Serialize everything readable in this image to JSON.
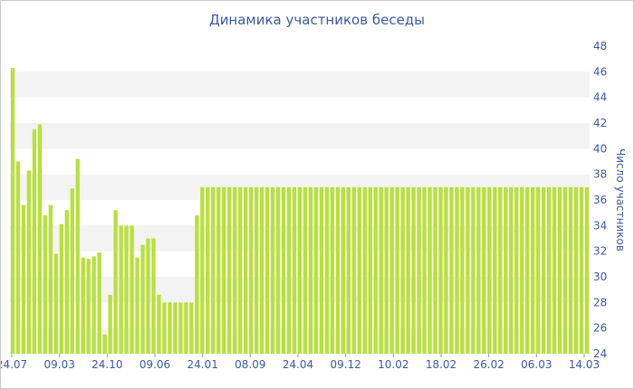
{
  "chart_data": {
    "type": "bar",
    "title": "Динамика участников беседы",
    "xlabel": "",
    "ylabel": "Число участников",
    "ylim": [
      24,
      48
    ],
    "y_ticks": [
      24,
      26,
      28,
      30,
      32,
      34,
      36,
      38,
      40,
      42,
      44,
      46,
      48
    ],
    "y_axis_side": "right",
    "grid": "alternating horizontal bands",
    "bar_color": "#b8e03c",
    "band_color": "#f3f3f3",
    "x_tick_labels": [
      "24.07",
      "09.03",
      "24.10",
      "09.06",
      "24.01",
      "08.09",
      "24.04",
      "09.12",
      "10.02",
      "18.02",
      "26.02",
      "06.03",
      "14.03"
    ],
    "values": [
      46.3,
      39.0,
      35.6,
      38.3,
      41.5,
      41.9,
      34.8,
      35.6,
      31.8,
      34.1,
      35.2,
      36.9,
      39.2,
      31.5,
      31.4,
      31.6,
      31.9,
      25.5,
      28.6,
      35.2,
      34.0,
      34.0,
      34.0,
      31.5,
      32.5,
      33.0,
      33.0,
      28.6,
      28.0,
      28.0,
      28.0,
      28.0,
      28.0,
      28.0,
      34.8,
      37.0,
      37.0,
      37.0,
      37.0,
      37.0,
      37.0,
      37.0,
      37.0,
      37.0,
      37.0,
      37.0,
      37.0,
      37.0,
      37.0,
      37.0,
      37.0,
      37.0,
      37.0,
      37.0,
      37.0,
      37.0,
      37.0,
      37.0,
      37.0,
      37.0,
      37.0,
      37.0,
      37.0,
      37.0,
      37.0,
      37.0,
      37.0,
      37.0,
      37.0,
      37.0,
      37.0,
      37.0,
      37.0,
      37.0,
      37.0,
      37.0,
      37.0,
      37.0,
      37.0,
      37.0,
      37.0,
      37.0,
      37.0,
      37.0,
      37.0,
      37.0,
      37.0,
      37.0,
      37.0,
      37.0,
      37.0,
      37.0,
      37.0,
      37.0,
      37.0,
      37.0,
      37.0,
      37.0,
      37.0,
      37.0,
      37.0,
      37.0,
      37.0,
      37.0,
      37.0,
      37.0,
      37.0
    ]
  }
}
